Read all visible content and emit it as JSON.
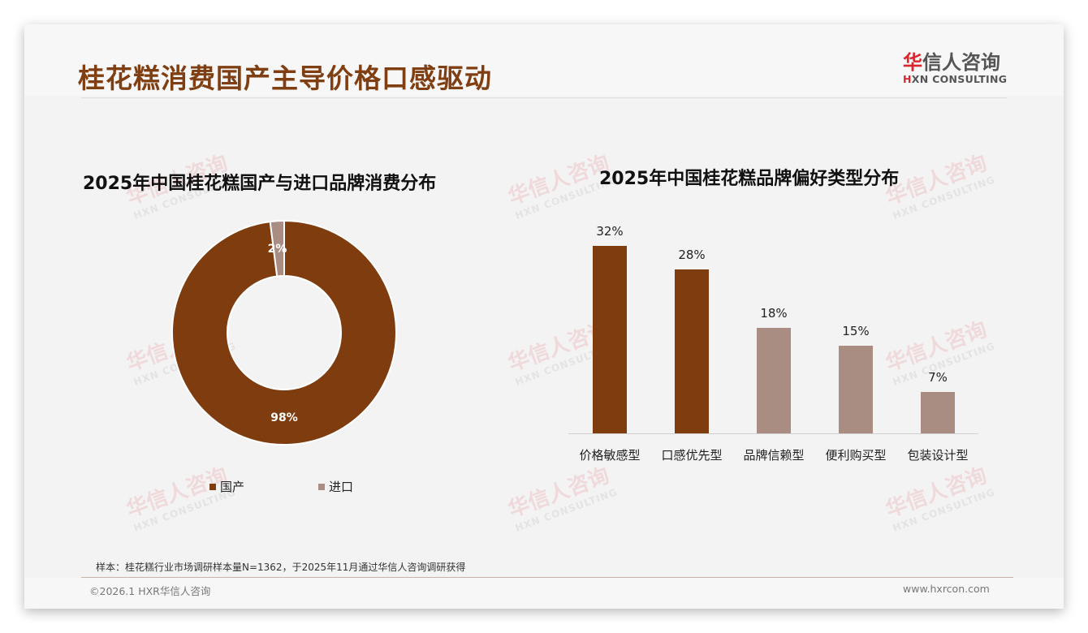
{
  "page": {
    "title": "桂花糕消费国产主导价格口感驱动",
    "colors": {
      "primary_brown": "#7f3c0e",
      "secondary_taupe": "#a98c82",
      "title_color": "#7f3f12",
      "logo_red": "#d9262c"
    }
  },
  "logo": {
    "cn_first": "华",
    "cn_rest": "信人咨询",
    "en_first": "H",
    "en_rest": "XN CONSULTING"
  },
  "watermark": {
    "cn": "华信人咨询",
    "en": "HXN CONSULTING"
  },
  "chart_data": [
    {
      "type": "pie",
      "variant": "donut",
      "title": "2025年中国桂花糕国产与进口品牌消费分布",
      "categories": [
        "国产",
        "进口"
      ],
      "values": [
        98,
        2
      ],
      "labels": [
        "98%",
        "2%"
      ],
      "colors": [
        "#7f3c0e",
        "#a98c82"
      ],
      "legend_position": "bottom"
    },
    {
      "type": "bar",
      "title": "2025年中国桂花糕品牌偏好类型分布",
      "categories": [
        "价格敏感型",
        "口感优先型",
        "品牌信赖型",
        "便利购买型",
        "包装设计型"
      ],
      "values": [
        32,
        28,
        18,
        15,
        7
      ],
      "labels": [
        "32%",
        "28%",
        "18%",
        "15%",
        "7%"
      ],
      "colors": [
        "#7f3c0e",
        "#7f3c0e",
        "#a98c82",
        "#a98c82",
        "#a98c82"
      ],
      "xlabel": "",
      "ylabel": "",
      "grid": false
    }
  ],
  "footer": {
    "note": "样本：桂花糕行业市场调研样本量N=1362，于2025年11月通过华信人咨询调研获得",
    "copyright": "©2026.1 HXR华信人咨询",
    "website": "www.hxrcon.com"
  }
}
